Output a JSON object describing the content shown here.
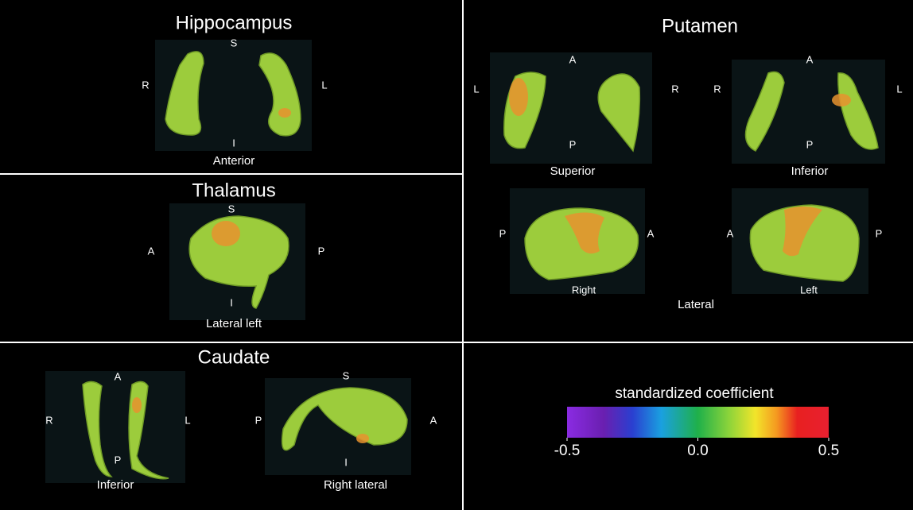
{
  "panels": [
    {
      "title": "Hippocampus",
      "views": [
        {
          "top": "S",
          "left": "R",
          "right": "L",
          "bottom": "I",
          "caption": "Anterior"
        }
      ]
    },
    {
      "title": "Thalamus",
      "views": [
        {
          "top": "S",
          "left": "A",
          "right": "P",
          "bottom": "I",
          "caption": "Lateral left"
        }
      ]
    },
    {
      "title": "Caudate",
      "views": [
        {
          "top": "A",
          "left": "R",
          "right": "L",
          "bottom": "P",
          "caption": "Inferior"
        },
        {
          "top": "S",
          "left": "P",
          "right": "A",
          "bottom": "I",
          "caption": "Right lateral"
        }
      ]
    },
    {
      "title": "Putamen",
      "views": [
        {
          "top": "A",
          "left": "L",
          "right": "R",
          "bottom": "P",
          "caption": "Superior"
        },
        {
          "top": "A",
          "left": "R",
          "right": "L",
          "bottom": "P",
          "caption": "Inferior"
        },
        {
          "left": "P",
          "right": "A",
          "caption": "Right"
        },
        {
          "left": "A",
          "right": "P",
          "caption": "Left"
        }
      ],
      "group_caption": "Lateral"
    }
  ],
  "colorbar": {
    "title": "standardized coefficient",
    "lim": [
      -0.5,
      0.5
    ],
    "ticks": [
      -0.5,
      {
        "value": 0,
        "label": "0.0"
      },
      0.5
    ]
  }
}
